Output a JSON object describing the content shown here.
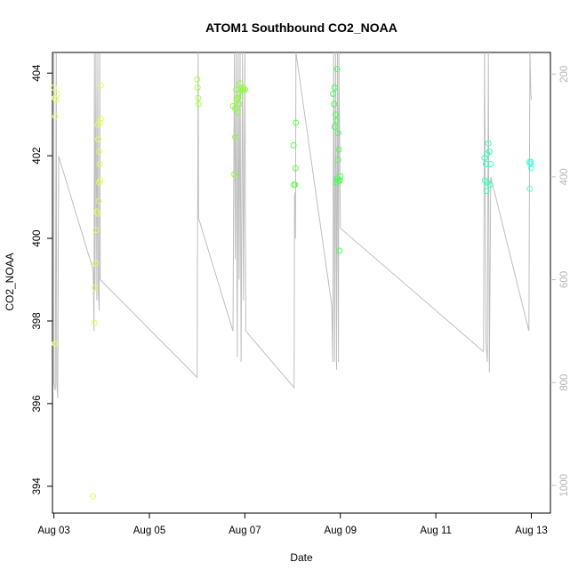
{
  "chart_data": {
    "type": "scatter",
    "title": "ATOM1 Southbound CO2_NOAA",
    "xlabel": "Date",
    "ylabel": "CO2_NOAA",
    "x_ticks": [
      "Aug 03",
      "Aug 05",
      "Aug 07",
      "Aug 09",
      "Aug 11",
      "Aug 13"
    ],
    "x_tick_days": [
      3,
      5,
      7,
      9,
      11,
      13
    ],
    "xlim": [
      2.97,
      13.4
    ],
    "y_ticks": [
      394,
      396,
      398,
      400,
      402,
      404
    ],
    "ylim": [
      393.35,
      404.5
    ],
    "y2_ticks": [
      200,
      400,
      600,
      800,
      1000
    ],
    "y2lim": [
      1054,
      158
    ],
    "y2_reversed": true,
    "y2_color": "#bebebe",
    "grid": false,
    "colors": {
      "pressure_line": "#bebebe",
      "axis": "#000000"
    },
    "series": [
      {
        "color": "#e6ff66",
        "points": [
          [
            3.0,
            403.65
          ],
          [
            3.02,
            403.4
          ],
          [
            3.05,
            403.35
          ],
          [
            3.07,
            403.5
          ],
          [
            3.03,
            402.95
          ],
          [
            3.02,
            397.45
          ]
        ]
      },
      {
        "color": "#ddff55",
        "points": [
          [
            3.82,
            393.75
          ],
          [
            3.85,
            397.95
          ],
          [
            3.86,
            398.8
          ],
          [
            3.87,
            399.4
          ],
          [
            3.88,
            400.2
          ],
          [
            3.9,
            400.65
          ],
          [
            3.92,
            400.6
          ],
          [
            3.94,
            400.9
          ],
          [
            3.95,
            401.35
          ],
          [
            3.96,
            401.8
          ],
          [
            3.97,
            401.4
          ],
          [
            3.95,
            402.1
          ],
          [
            3.93,
            402.4
          ],
          [
            3.92,
            402.75
          ],
          [
            3.96,
            402.8
          ],
          [
            3.98,
            402.9
          ],
          [
            3.98,
            403.7
          ]
        ]
      },
      {
        "color": "#aaff44",
        "points": [
          [
            6.0,
            403.85
          ],
          [
            6.01,
            403.65
          ],
          [
            6.02,
            403.4
          ],
          [
            6.03,
            403.25
          ]
        ]
      },
      {
        "color": "#88ff33",
        "points": [
          [
            6.78,
            401.55
          ],
          [
            6.8,
            402.45
          ],
          [
            6.75,
            403.2
          ],
          [
            6.8,
            403.15
          ],
          [
            6.82,
            403.6
          ],
          [
            6.85,
            403.05
          ],
          [
            6.83,
            403.35
          ],
          [
            6.87,
            403.5
          ],
          [
            6.9,
            403.75
          ],
          [
            6.92,
            403.6
          ],
          [
            6.95,
            403.65
          ],
          [
            6.97,
            403.6
          ],
          [
            7.0,
            403.6
          ],
          [
            6.86,
            403.4
          ],
          [
            6.88,
            403.25
          ]
        ]
      },
      {
        "color": "#55ff44",
        "points": [
          [
            8.02,
            402.25
          ],
          [
            8.03,
            401.3
          ],
          [
            8.05,
            401.3
          ],
          [
            8.06,
            401.7
          ],
          [
            8.07,
            402.8
          ]
        ]
      },
      {
        "color": "#44ff55",
        "points": [
          [
            8.88,
            403.65
          ],
          [
            8.85,
            403.5
          ],
          [
            8.87,
            403.25
          ],
          [
            8.9,
            403.0
          ],
          [
            8.92,
            402.85
          ],
          [
            8.88,
            402.7
          ],
          [
            8.95,
            402.55
          ],
          [
            8.93,
            404.1
          ],
          [
            8.95,
            401.9
          ],
          [
            8.97,
            402.15
          ],
          [
            8.93,
            401.45
          ],
          [
            8.92,
            401.35
          ],
          [
            8.96,
            401.4
          ],
          [
            8.99,
            401.4
          ],
          [
            9.0,
            401.5
          ],
          [
            8.98,
            399.7
          ]
        ]
      },
      {
        "color": "#33ffbb",
        "points": [
          [
            12.02,
            401.95
          ],
          [
            12.05,
            401.8
          ],
          [
            12.07,
            402.05
          ],
          [
            12.1,
            402.3
          ],
          [
            12.12,
            402.1
          ],
          [
            12.15,
            401.8
          ],
          [
            12.03,
            401.4
          ],
          [
            12.08,
            401.35
          ],
          [
            12.13,
            401.3
          ],
          [
            12.06,
            401.15
          ]
        ]
      },
      {
        "color": "#44ffdd",
        "points": [
          [
            12.96,
            401.85
          ],
          [
            12.98,
            401.8
          ],
          [
            13.0,
            401.7
          ],
          [
            12.99,
            401.85
          ],
          [
            12.97,
            401.2
          ]
        ]
      }
    ],
    "pressure_line": [
      [
        3.0,
        158
      ],
      [
        3.0,
        800
      ],
      [
        3.03,
        815
      ],
      [
        3.05,
        160
      ],
      [
        3.06,
        800
      ],
      [
        3.08,
        830
      ],
      [
        3.1,
        360
      ],
      [
        3.82,
        580
      ],
      [
        3.83,
        620
      ],
      [
        3.84,
        700
      ],
      [
        3.85,
        160
      ],
      [
        3.86,
        620
      ],
      [
        3.88,
        160
      ],
      [
        3.9,
        640
      ],
      [
        3.92,
        160
      ],
      [
        3.93,
        620
      ],
      [
        3.95,
        660
      ],
      [
        3.96,
        160
      ],
      [
        3.97,
        600
      ],
      [
        6.0,
        790
      ],
      [
        6.01,
        500
      ],
      [
        6.02,
        158
      ],
      [
        6.03,
        480
      ],
      [
        6.75,
        700
      ],
      [
        6.78,
        158
      ],
      [
        6.8,
        560
      ],
      [
        6.82,
        158
      ],
      [
        6.84,
        750
      ],
      [
        6.86,
        158
      ],
      [
        6.88,
        600
      ],
      [
        6.9,
        158
      ],
      [
        6.92,
        760
      ],
      [
        6.95,
        158
      ],
      [
        6.97,
        640
      ],
      [
        7.0,
        158
      ],
      [
        7.02,
        700
      ],
      [
        8.03,
        810
      ],
      [
        8.04,
        440
      ],
      [
        8.05,
        430
      ],
      [
        8.06,
        520
      ],
      [
        8.07,
        158
      ],
      [
        8.82,
        650
      ],
      [
        8.84,
        760
      ],
      [
        8.86,
        158
      ],
      [
        8.88,
        760
      ],
      [
        8.9,
        158
      ],
      [
        8.92,
        775
      ],
      [
        8.94,
        158
      ],
      [
        8.96,
        760
      ],
      [
        8.97,
        158
      ],
      [
        9.0,
        500
      ],
      [
        12.0,
        740
      ],
      [
        12.02,
        158
      ],
      [
        12.05,
        720
      ],
      [
        12.08,
        760
      ],
      [
        12.1,
        158
      ],
      [
        12.12,
        780
      ],
      [
        12.15,
        400
      ],
      [
        12.95,
        700
      ],
      [
        12.97,
        158
      ],
      [
        12.99,
        240
      ],
      [
        13.0,
        250
      ]
    ]
  }
}
